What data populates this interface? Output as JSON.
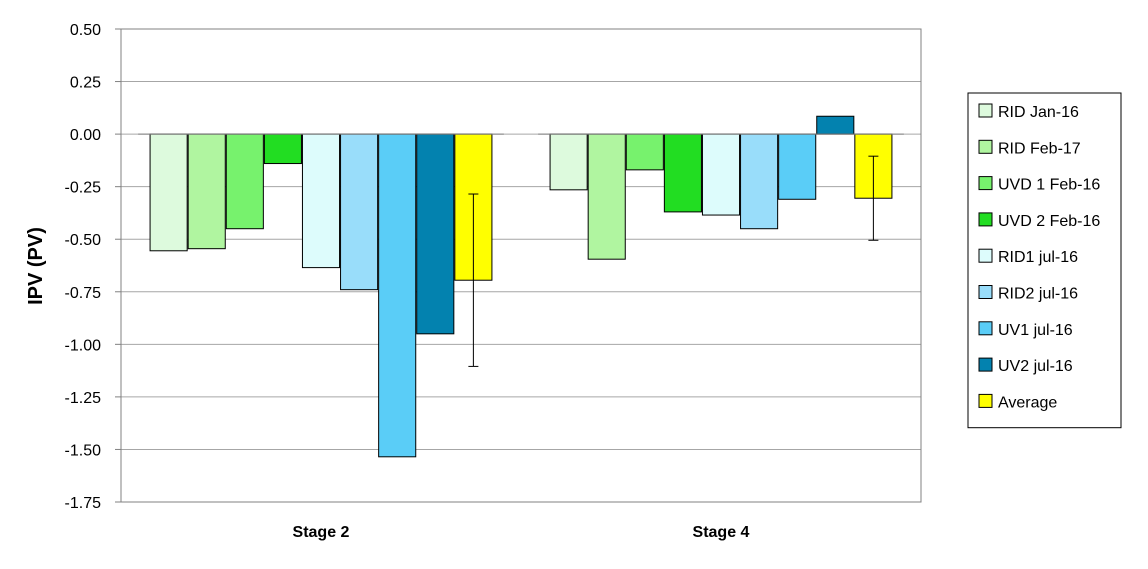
{
  "chart_data": {
    "type": "bar",
    "title": "",
    "xlabel": "",
    "ylabel": "IPV (PV)",
    "ylim": [
      -1.75,
      0.5
    ],
    "yticks": [
      0.5,
      0.25,
      0.0,
      -0.25,
      -0.5,
      -0.75,
      -1.0,
      -1.25,
      -1.5,
      -1.75
    ],
    "ytick_labels": [
      "0.50",
      "0.25",
      "0.00",
      "-0.25",
      "-0.50",
      "-0.75",
      "-1.00",
      "-1.25",
      "-1.50",
      "-1.75"
    ],
    "grid": true,
    "legend_position": "right",
    "categories": [
      "Stage 2",
      "Stage 4"
    ],
    "series": [
      {
        "name": "RID Jan-16",
        "color": "#ddfadd",
        "values": [
          -0.555,
          -0.265
        ]
      },
      {
        "name": "RID Feb-17",
        "color": "#b0f5a0",
        "values": [
          -0.545,
          -0.595
        ]
      },
      {
        "name": "UVD 1 Feb-16",
        "color": "#77f26d",
        "values": [
          -0.45,
          -0.17
        ]
      },
      {
        "name": "UVD 2 Feb-16",
        "color": "#22dd22",
        "values": [
          -0.14,
          -0.37
        ]
      },
      {
        "name": "RID1 jul-16",
        "color": "#ddfcfc",
        "values": [
          -0.635,
          -0.385
        ]
      },
      {
        "name": "RID2 jul-16",
        "color": "#99ddfa",
        "values": [
          -0.74,
          -0.45
        ]
      },
      {
        "name": "UV1 jul-16",
        "color": "#5acdf7",
        "values": [
          -1.535,
          -0.31
        ]
      },
      {
        "name": "UV2 jul-16",
        "color": "#0382af",
        "values": [
          -0.95,
          0.085
        ]
      },
      {
        "name": "Average",
        "color": "#ffff00",
        "values": [
          -0.695,
          -0.305
        ],
        "error_low": [
          -1.105,
          -0.505
        ],
        "error_high": [
          -0.285,
          -0.105
        ]
      }
    ]
  }
}
